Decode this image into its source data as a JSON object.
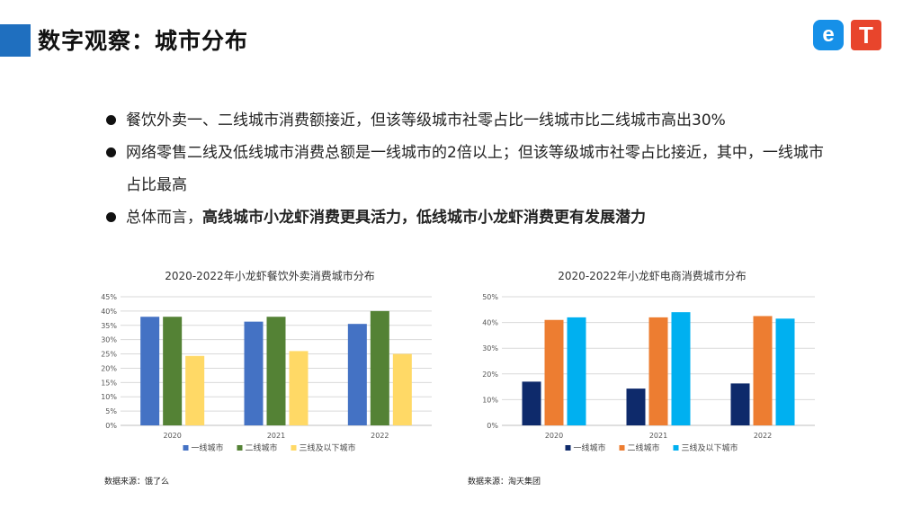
{
  "header": {
    "title": "数字观察：城市分布"
  },
  "logos": {
    "left": "e",
    "right": "T"
  },
  "bullets": [
    {
      "plain": "餐饮外卖一、二线城市消费额接近，但该等级城市社零占比一线城市比二线城市高出30%",
      "bold": ""
    },
    {
      "plain": "网络零售二线及低线城市消费总额是一线城市的2倍以上；但该等级城市社零占比接近，其中，一线城市占比最高",
      "bold": ""
    },
    {
      "plain": "总体而言，",
      "bold": "高线城市小龙虾消费更具活力，低线城市小龙虾消费更有发展潜力"
    }
  ],
  "sources": {
    "left": "数据来源：饿了么",
    "right": "数据来源：淘天集团"
  },
  "chart_data": [
    {
      "type": "bar",
      "title": "2020-2022年小龙虾餐饮外卖消费城市分布",
      "categories": [
        "2020",
        "2021",
        "2022"
      ],
      "ylim": [
        0,
        45
      ],
      "yticks": [
        "0%",
        "5%",
        "10%",
        "15%",
        "20%",
        "25%",
        "30%",
        "35%",
        "40%",
        "45%"
      ],
      "ytick_values": [
        0,
        5,
        10,
        15,
        20,
        25,
        30,
        35,
        40,
        45
      ],
      "grid": true,
      "legend_position": "bottom",
      "series": [
        {
          "name": "一线城市",
          "color": "#4472c4",
          "values": [
            38,
            36.3,
            35.5
          ]
        },
        {
          "name": "二线城市",
          "color": "#548235",
          "values": [
            38,
            38,
            40
          ]
        },
        {
          "name": "三线及以下城市",
          "color": "#ffd966",
          "values": [
            24.3,
            26,
            25
          ]
        }
      ]
    },
    {
      "type": "bar",
      "title": "2020-2022年小龙虾电商消费城市分布",
      "categories": [
        "2020",
        "2021",
        "2022"
      ],
      "ylim": [
        0,
        50
      ],
      "yticks": [
        "0%",
        "10%",
        "20%",
        "30%",
        "40%",
        "50%"
      ],
      "ytick_values": [
        0,
        10,
        20,
        30,
        40,
        50
      ],
      "grid": true,
      "legend_position": "bottom",
      "series": [
        {
          "name": "一线城市",
          "color": "#0e2a6b",
          "values": [
            17,
            14.3,
            16.3
          ]
        },
        {
          "name": "二线城市",
          "color": "#ed7d31",
          "values": [
            41,
            42,
            42.5
          ]
        },
        {
          "name": "三线及以下城市",
          "color": "#00b0f0",
          "values": [
            42,
            44,
            41.5
          ]
        }
      ]
    }
  ]
}
